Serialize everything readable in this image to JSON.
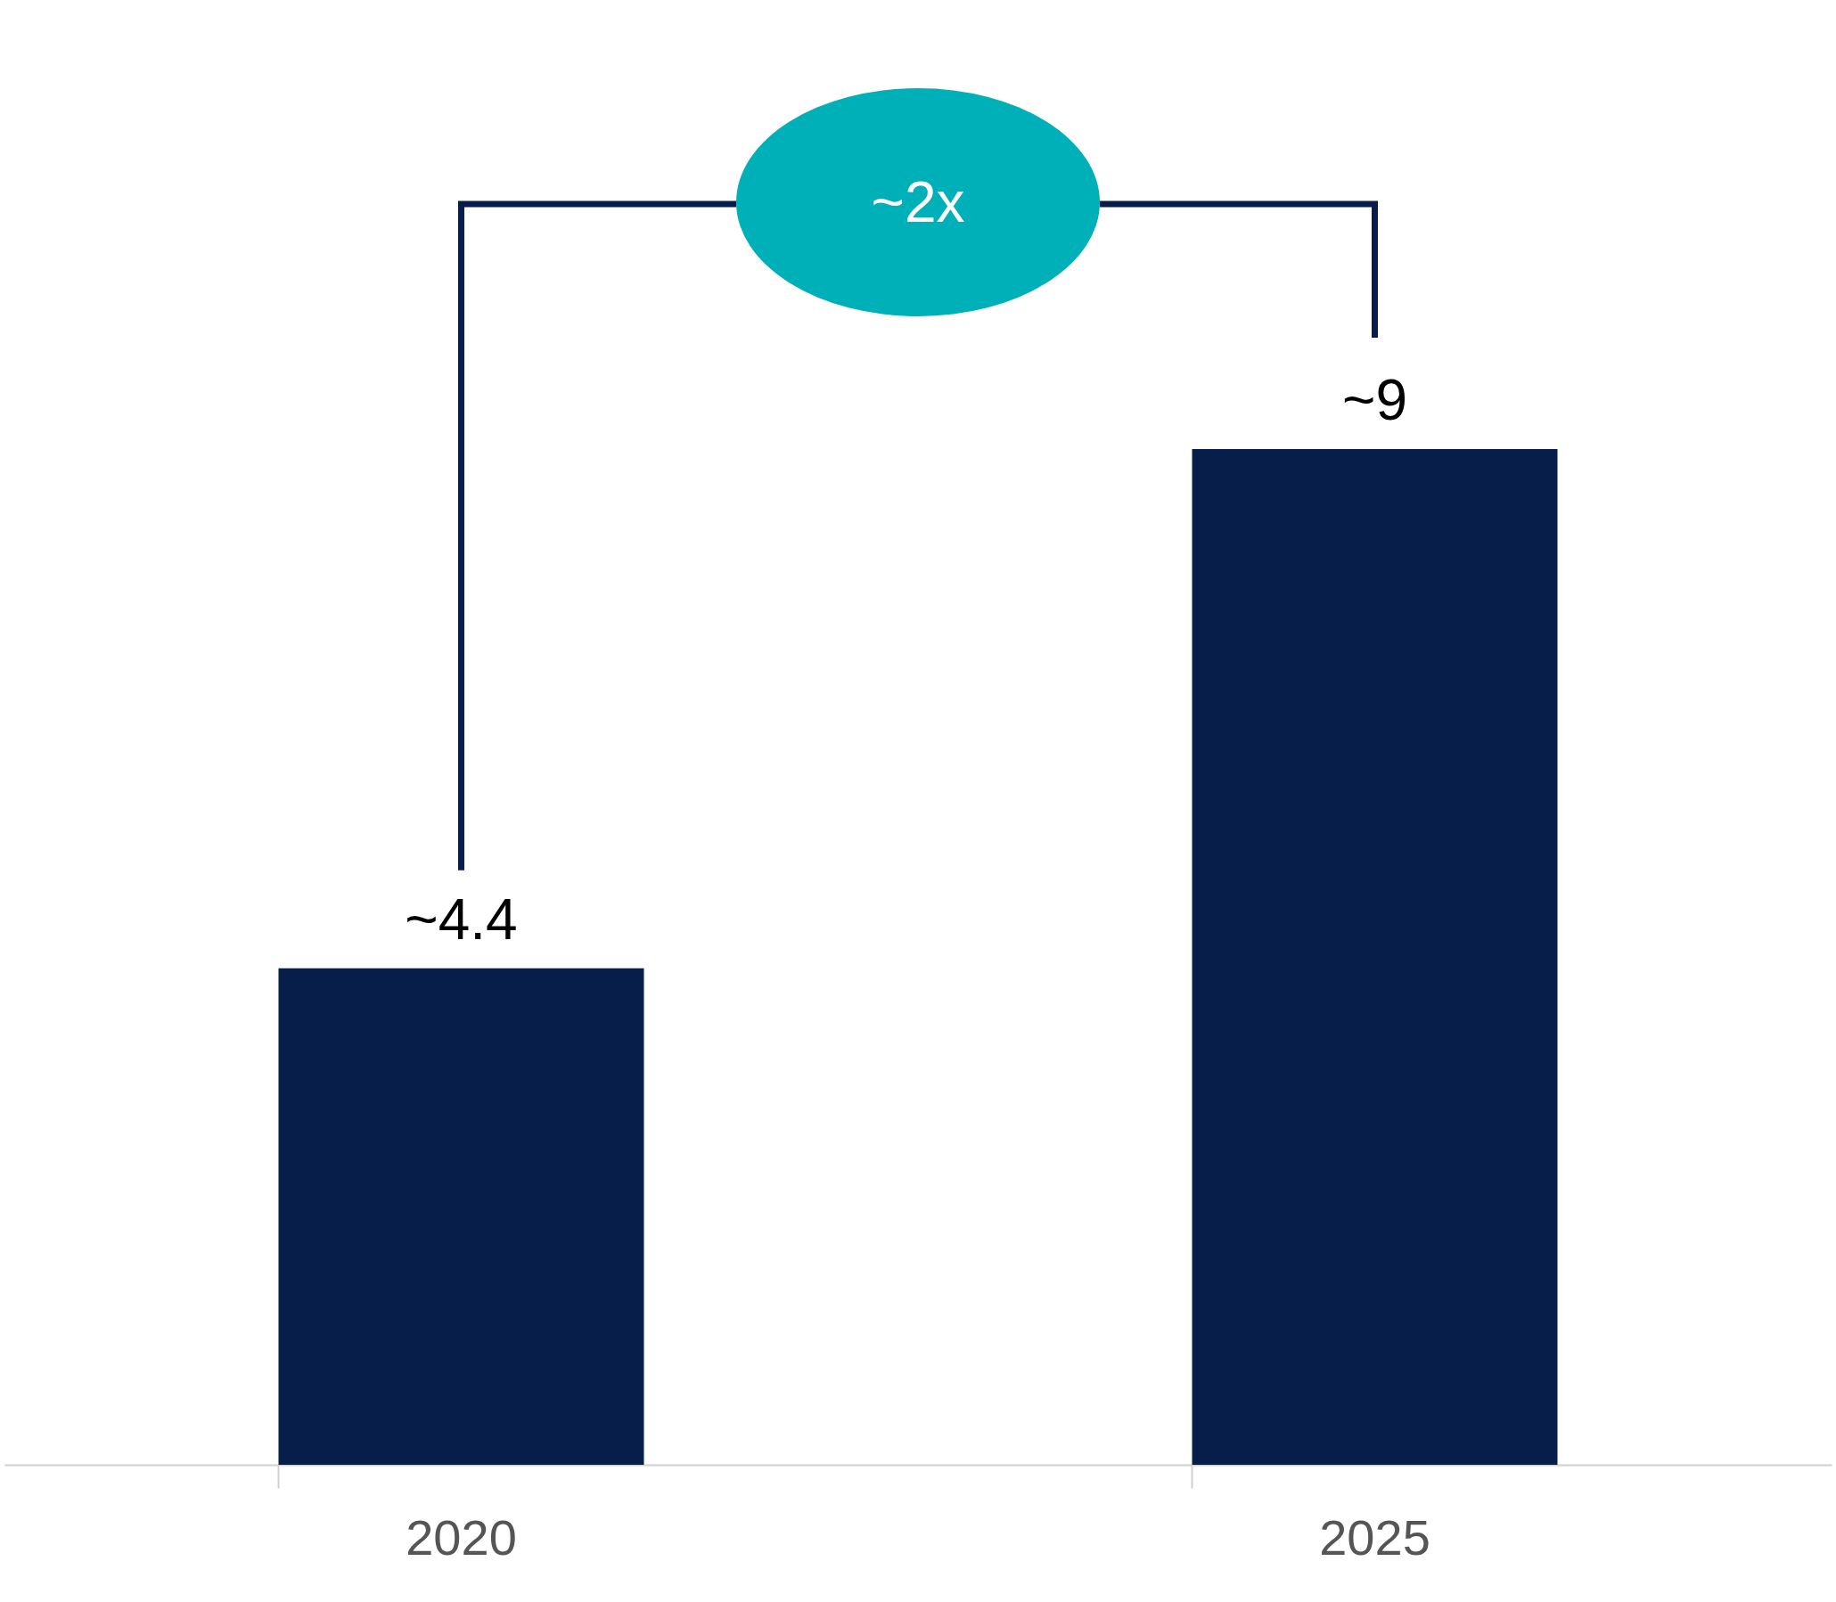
{
  "chart_data": {
    "type": "bar",
    "categories": [
      "2020",
      "2025"
    ],
    "values": [
      4.4,
      9
    ],
    "color": "#071e4a",
    "value_labels": [
      "~4.4",
      "~9"
    ],
    "annotations": [
      "~2x"
    ]
  }
}
